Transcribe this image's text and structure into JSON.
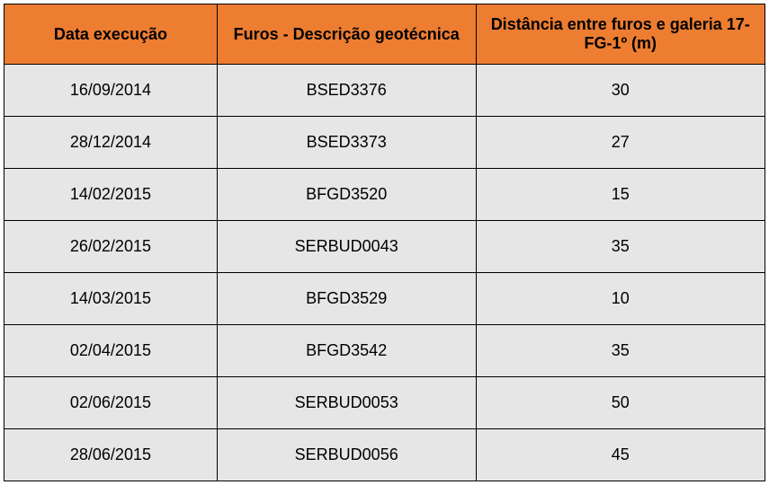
{
  "table": {
    "type": "table",
    "header_bg_color": "#ed7d31",
    "header_text_color": "#000000",
    "cell_bg_color": "#e6e6e6",
    "cell_text_color": "#000000",
    "border_color": "#000000",
    "border_width": 1.5,
    "header_fontsize": 18,
    "cell_fontsize": 18,
    "column_widths": [
      "28%",
      "34%",
      "38%"
    ],
    "columns": [
      "Data execução",
      "Furos - Descrição geotécnica",
      "Distância entre furos e galeria 17-FG-1º (m)"
    ],
    "rows": [
      [
        "16/09/2014",
        "BSED3376",
        "30"
      ],
      [
        "28/12/2014",
        "BSED3373",
        "27"
      ],
      [
        "14/02/2015",
        "BFGD3520",
        "15"
      ],
      [
        "26/02/2015",
        "SERBUD0043",
        "35"
      ],
      [
        "14/03/2015",
        "BFGD3529",
        "10"
      ],
      [
        "02/04/2015",
        "BFGD3542",
        "35"
      ],
      [
        "02/06/2015",
        "SERBUD0053",
        "50"
      ],
      [
        "28/06/2015",
        "SERBUD0056",
        "45"
      ]
    ]
  }
}
